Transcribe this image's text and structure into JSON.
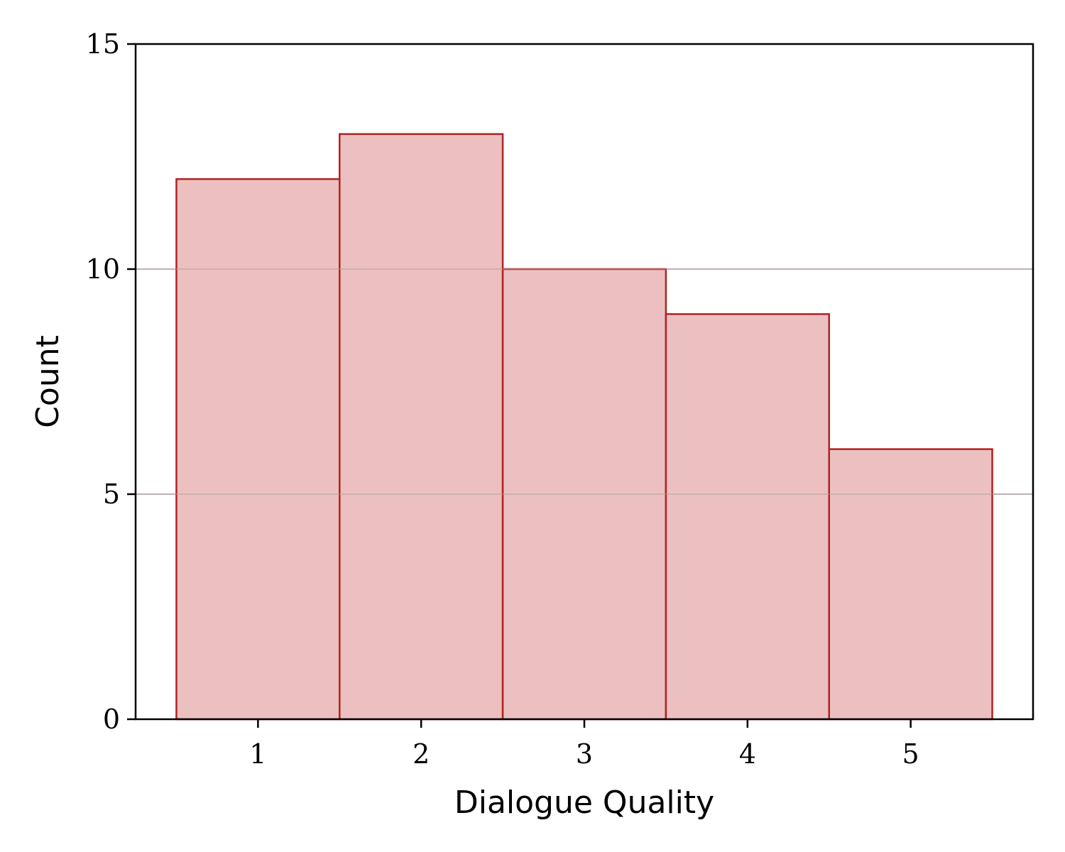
{
  "chart_data": {
    "type": "bar",
    "xlabel": "Dialogue Quality",
    "ylabel": "Count",
    "categories": [
      "1",
      "2",
      "3",
      "4",
      "5"
    ],
    "values": [
      12,
      13,
      10,
      9,
      6
    ],
    "ylim": [
      0,
      15
    ],
    "xlim": [
      0.25,
      5.75
    ],
    "yticks": [
      0,
      5,
      10,
      15
    ],
    "xticks": [
      1,
      2,
      3,
      4,
      5
    ],
    "grid": "horizontal",
    "legend": "none",
    "colors": {
      "bar_fill": "#ebbdbd",
      "bar_edge": "#b22222",
      "grid": "#b3a0a0",
      "axis": "#000000"
    }
  }
}
